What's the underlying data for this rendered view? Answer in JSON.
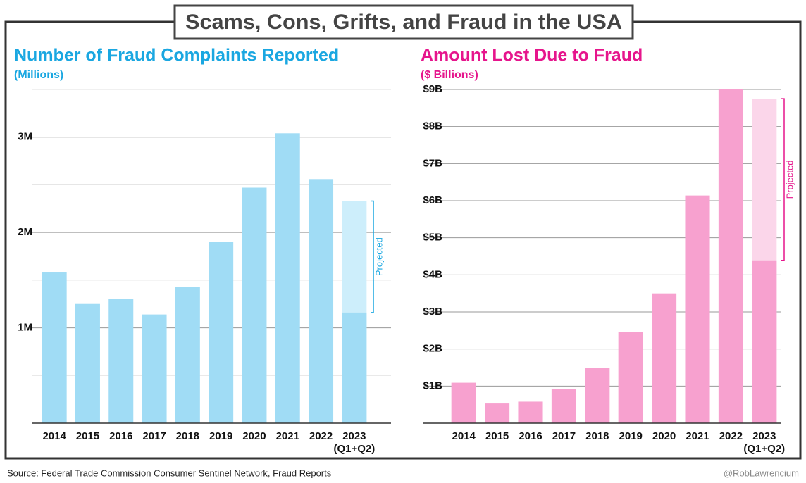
{
  "title": "Scams, Cons, Grifts, and Fraud in the USA",
  "source": "Source: Federal Trade Commission Consumer Sentinel Network, Fraud Reports",
  "credit": "@RobLawrencium",
  "chart_data": [
    {
      "type": "bar",
      "title": "Number of Fraud Complaints Reported",
      "subtitle": "(Millions)",
      "categories": [
        "2014",
        "2015",
        "2016",
        "2017",
        "2018",
        "2019",
        "2020",
        "2021",
        "2022",
        "2023"
      ],
      "category_note": "(Q1+Q2)",
      "values": [
        1.58,
        1.25,
        1.3,
        1.14,
        1.43,
        1.9,
        2.47,
        3.04,
        2.56,
        1.16
      ],
      "projected": [
        null,
        null,
        null,
        null,
        null,
        null,
        null,
        null,
        null,
        2.33
      ],
      "annotation": "Projected",
      "color": "#a0dcf5",
      "projected_color": "#cdeefb",
      "accent_color": "#1aa7e1",
      "ylim": [
        0,
        3.5
      ],
      "yticks": [
        {
          "value": 1,
          "label": "1M"
        },
        {
          "value": 2,
          "label": "2M"
        },
        {
          "value": 3,
          "label": "3M"
        }
      ],
      "minor_yticks": [
        0.5,
        1.5,
        2.5,
        3.5
      ],
      "grid": true
    },
    {
      "type": "bar",
      "title": "Amount Lost Due to Fraud",
      "subtitle": "($ Billions)",
      "categories": [
        "2014",
        "2015",
        "2016",
        "2017",
        "2018",
        "2019",
        "2020",
        "2021",
        "2022",
        "2023"
      ],
      "category_note": "(Q1+Q2)",
      "values": [
        1.09,
        0.53,
        0.58,
        0.92,
        1.49,
        2.46,
        3.5,
        6.14,
        9.0,
        4.39
      ],
      "projected": [
        null,
        null,
        null,
        null,
        null,
        null,
        null,
        null,
        null,
        8.75
      ],
      "annotation": "Projected",
      "color": "#f7a1cf",
      "projected_color": "#fbd6ea",
      "accent_color": "#e6158c",
      "ylim": [
        0,
        9
      ],
      "yticks": [
        {
          "value": 1,
          "label": "$1B"
        },
        {
          "value": 2,
          "label": "$2B"
        },
        {
          "value": 3,
          "label": "$3B"
        },
        {
          "value": 4,
          "label": "$4B"
        },
        {
          "value": 5,
          "label": "$5B"
        },
        {
          "value": 6,
          "label": "$6B"
        },
        {
          "value": 7,
          "label": "$7B"
        },
        {
          "value": 8,
          "label": "$8B"
        },
        {
          "value": 9,
          "label": "$9B"
        }
      ],
      "grid": true
    }
  ]
}
